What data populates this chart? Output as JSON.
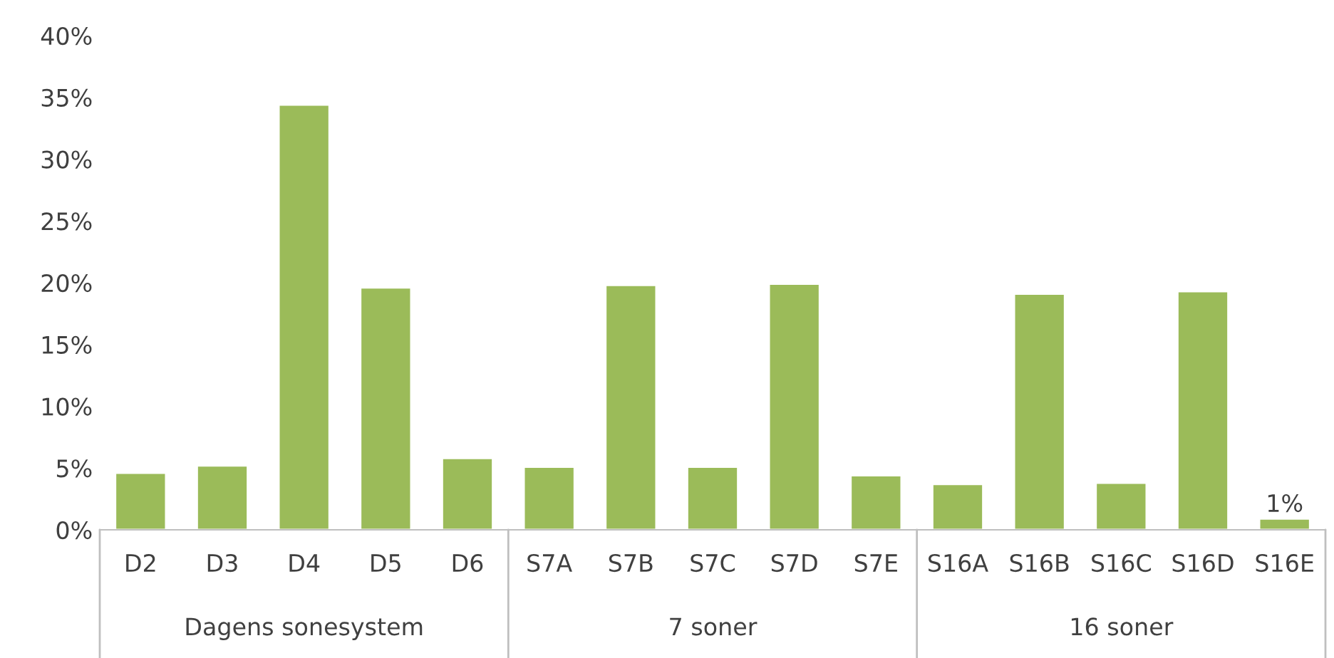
{
  "chart_data": {
    "type": "bar",
    "categories": [
      "D2",
      "D3",
      "D4",
      "D5",
      "D6",
      "S7A",
      "S7B",
      "S7C",
      "S7D",
      "S7E",
      "S16A",
      "S16B",
      "S16C",
      "S16D",
      "S16E"
    ],
    "values": [
      4.6,
      5.2,
      34.4,
      19.6,
      5.8,
      5.1,
      19.8,
      5.1,
      19.9,
      4.4,
      3.7,
      19.1,
      3.8,
      19.3,
      0.9
    ],
    "value_labels": [
      null,
      null,
      null,
      null,
      null,
      null,
      null,
      null,
      null,
      null,
      null,
      null,
      null,
      null,
      "1%"
    ],
    "color": "#9bbb59",
    "ylim": [
      0,
      40
    ],
    "yticks": [
      {
        "value": 0,
        "label": "0%"
      },
      {
        "value": 5,
        "label": "5%"
      },
      {
        "value": 10,
        "label": "10%"
      },
      {
        "value": 15,
        "label": "15%"
      },
      {
        "value": 20,
        "label": "20%"
      },
      {
        "value": 25,
        "label": "25%"
      },
      {
        "value": 30,
        "label": "30%"
      },
      {
        "value": 35,
        "label": "35%"
      },
      {
        "value": 40,
        "label": "40%"
      }
    ],
    "annotations": [
      "Dagens sonesystem",
      "7 soner",
      "16 soner"
    ],
    "grid": false
  }
}
